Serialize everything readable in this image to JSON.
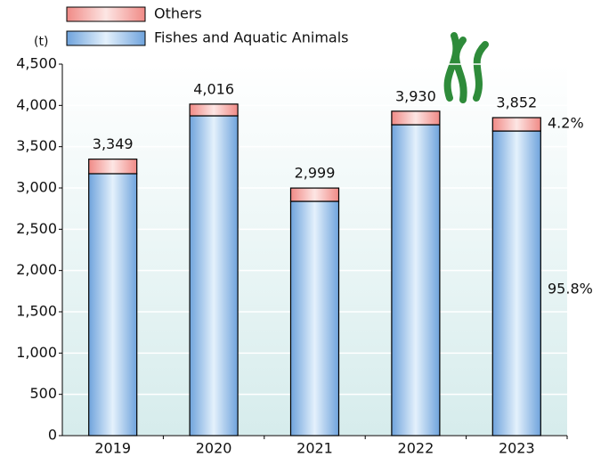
{
  "chart_data": {
    "type": "stacked_bar",
    "unit_label": "(t)",
    "categories": [
      "2019",
      "2020",
      "2021",
      "2022",
      "2023"
    ],
    "series": [
      {
        "name": "Fishes and Aquatic Animals",
        "color": "#6fa3dc",
        "values": [
          3173,
          3874,
          2838,
          3766,
          3690
        ]
      },
      {
        "name": "Others",
        "color": "#f08a86",
        "values": [
          176,
          142,
          161,
          164,
          162
        ]
      }
    ],
    "totals": [
      {
        "value": 3349,
        "label": "3,349"
      },
      {
        "value": 4016,
        "label": "4,016"
      },
      {
        "value": 2999,
        "label": "2,999"
      },
      {
        "value": 3930,
        "label": "3,930"
      },
      {
        "value": 3852,
        "label": "3,852"
      }
    ],
    "share_labels": [
      "95.8%",
      "4.2%"
    ],
    "ylim": [
      0,
      4500
    ],
    "yticks": [
      0,
      500,
      {
        "value": 1000,
        "label": "1,000"
      },
      {
        "value": 1500,
        "label": "1,500"
      },
      {
        "value": 2000,
        "label": "2,000"
      },
      {
        "value": 2500,
        "label": "2,500"
      },
      {
        "value": 3000,
        "label": "3,000"
      },
      {
        "value": 3500,
        "label": "3,500"
      },
      {
        "value": 4000,
        "label": "4,000"
      },
      {
        "value": 4500,
        "label": "4,500"
      }
    ],
    "grid": true
  }
}
